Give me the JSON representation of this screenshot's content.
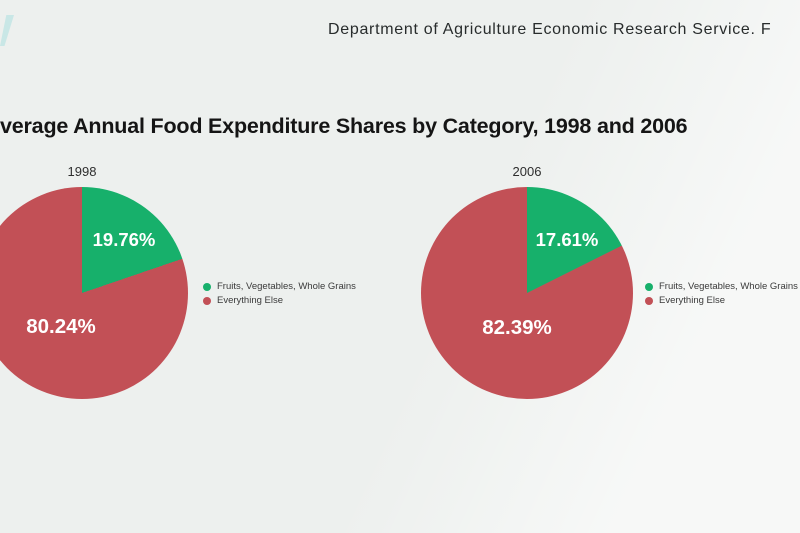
{
  "header": {
    "source_text": "Department of Agriculture Economic Research Service. F"
  },
  "main_title": "verage Annual Food Expenditure Shares by Category, 1998 and 2006",
  "colors": {
    "green": "#17b06b",
    "red": "#c25056",
    "background": "#edf0ee",
    "logo_teal": "#c9e7e6",
    "slice_label_white": "#ffffff",
    "title_black": "#151515",
    "legend_text_gray": "#3a3a3a"
  },
  "chart_data": [
    {
      "type": "pie",
      "title": "1998",
      "labels": [
        "Fruits, Vegetables, Whole Grains",
        "Everything Else"
      ],
      "values": [
        19.76,
        80.24
      ],
      "units": "%",
      "value_labels": [
        "19.76%",
        "80.24%"
      ],
      "slice_colors": [
        "#17b06b",
        "#c25056"
      ],
      "start_angle_deg": 0,
      "legend_position": "right"
    },
    {
      "type": "pie",
      "title": "2006",
      "labels": [
        "Fruits, Vegetables, Whole Grains",
        "Everything Else"
      ],
      "values": [
        17.61,
        82.39
      ],
      "units": "%",
      "value_labels": [
        "17.61%",
        "82.39%"
      ],
      "slice_colors": [
        "#17b06b",
        "#c25056"
      ],
      "start_angle_deg": 0,
      "legend_position": "right"
    }
  ]
}
